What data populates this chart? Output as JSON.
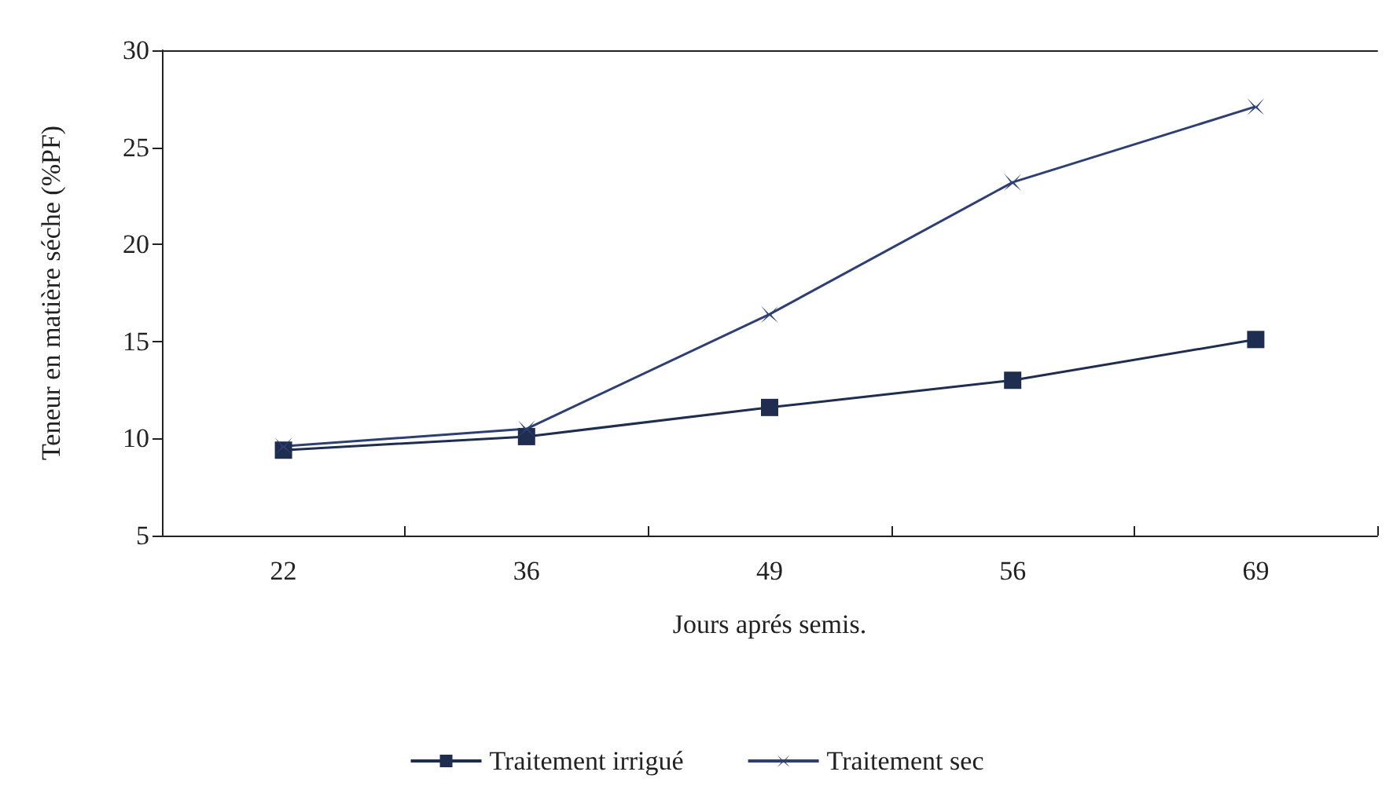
{
  "chart_data": {
    "type": "line",
    "xlabel": "Jours aprés semis.",
    "ylabel": "Teneur en matière séche (%PF)",
    "categories": [
      "22",
      "36",
      "49",
      "56",
      "69"
    ],
    "series": [
      {
        "name": "Traitement irrigué",
        "color": "#1f2d50",
        "marker": "square",
        "values": [
          9.4,
          10.1,
          11.6,
          13.0,
          15.1
        ]
      },
      {
        "name": "Traitement sec",
        "color": "#2e3f73",
        "marker": "cross",
        "values": [
          9.6,
          10.5,
          16.4,
          23.2,
          27.1
        ]
      }
    ],
    "ylim": [
      5,
      30
    ],
    "yticks": [
      5,
      10,
      15,
      20,
      25,
      30
    ],
    "grid": false,
    "legend": "bottom"
  }
}
